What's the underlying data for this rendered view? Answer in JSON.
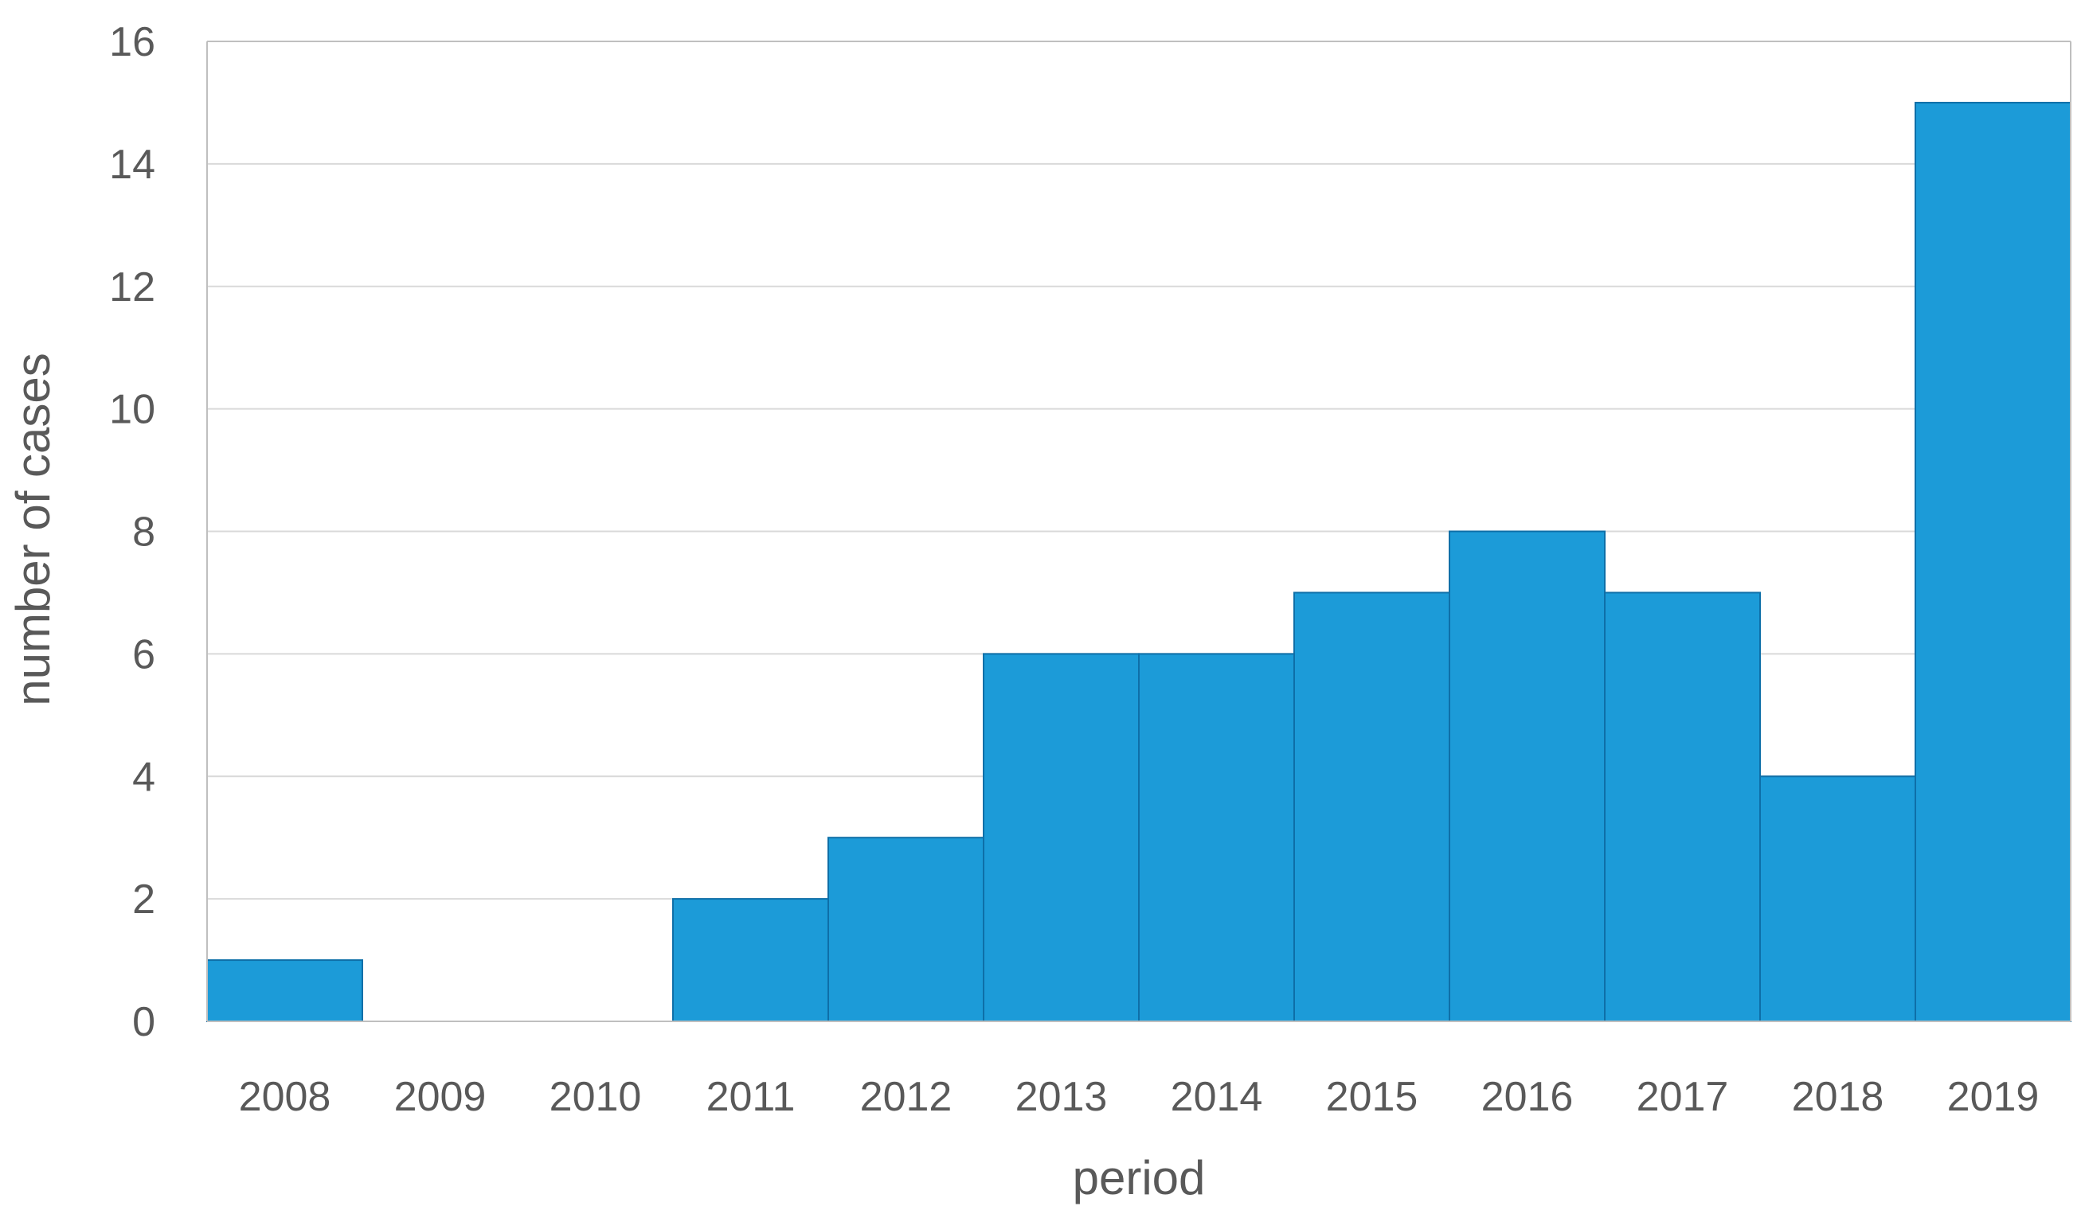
{
  "chart_data": {
    "type": "bar",
    "title": "",
    "xlabel": "period",
    "ylabel": "number of cases",
    "categories": [
      "2008",
      "2009",
      "2010",
      "2011",
      "2012",
      "2013",
      "2014",
      "2015",
      "2016",
      "2017",
      "2018",
      "2019"
    ],
    "values": [
      1,
      0,
      0,
      2,
      3,
      6,
      6,
      7,
      8,
      7,
      4,
      15
    ],
    "ylim": [
      0,
      16
    ],
    "yticks": [
      "0",
      "2",
      "4",
      "6",
      "8",
      "10",
      "12",
      "14",
      "16"
    ],
    "grid": true,
    "legend": "none",
    "bar_color": "#1c9bd8"
  }
}
